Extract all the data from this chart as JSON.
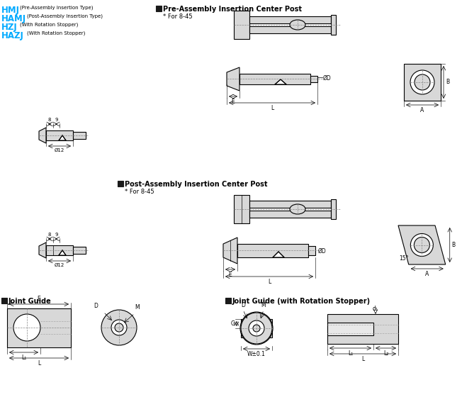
{
  "bg_color": "#ffffff",
  "line_color": "#000000",
  "fill_color": "#d8d8d8",
  "dark_fill": "#1a1a1a",
  "cyan_color": "#00aaff",
  "legend_items": [
    {
      "text": "HMJ",
      "desc": "(Pre-Assembly Insertion Type)"
    },
    {
      "text": "HAMJ",
      "desc": "(Post-Assembly Insertion Type)"
    },
    {
      "text": "HZJ",
      "desc": "(With Rotation Stopper)"
    },
    {
      "text": "HAZJ",
      "desc": "(With Rotation Stopper)"
    }
  ],
  "pre_assembly_label": "Pre-Assembly Insertion Center Post",
  "pre_for": "* For 8-45",
  "post_assembly_label": "Post-Assembly Insertion Center Post",
  "post_for": "* For 8-45",
  "joint_guide_label": "Joint Guide",
  "joint_guide_rotation_label": "Joint Guide (with Rotation Stopper)"
}
